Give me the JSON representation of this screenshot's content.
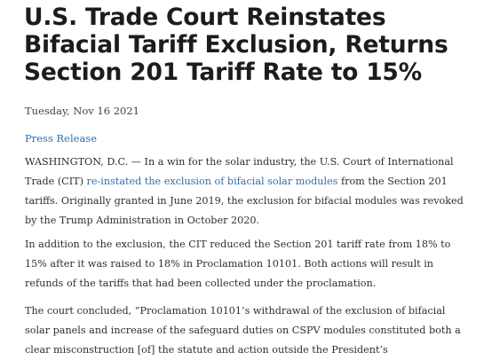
{
  "article": {
    "headline": "U.S. Trade Court Reinstates Bifacial Tariff Exclusion, Returns Section 201 Tariff Rate to 15%",
    "date": "Tuesday, Nov 16 2021",
    "category": "Press Release",
    "paragraphs": [
      {
        "before": "WASHINGTON, D.C. — In a win for the solar industry, the U.S. Court of International Trade (CIT) ",
        "link": "re-instated the exclusion of bifacial solar modules",
        "after": " from the Section 201 tariffs. Originally granted in June 2019, the exclusion for bifacial modules was revoked by the Trump Administration in October 2020."
      },
      {
        "text": "In addition to the exclusion, the CIT reduced the Section 201 tariff rate from 18% to 15% after it was raised to 18% in Proclamation 10101. Both actions will result in refunds of the tariffs that had been collected under the proclamation."
      },
      {
        "text": "The court concluded, “Proclamation 10101’s withdrawal of the exclusion of bifacial solar panels and increase of the safeguard duties on CSPV modules constituted both a clear misconstruction [of] the statute and action outside the President’s"
      }
    ]
  }
}
